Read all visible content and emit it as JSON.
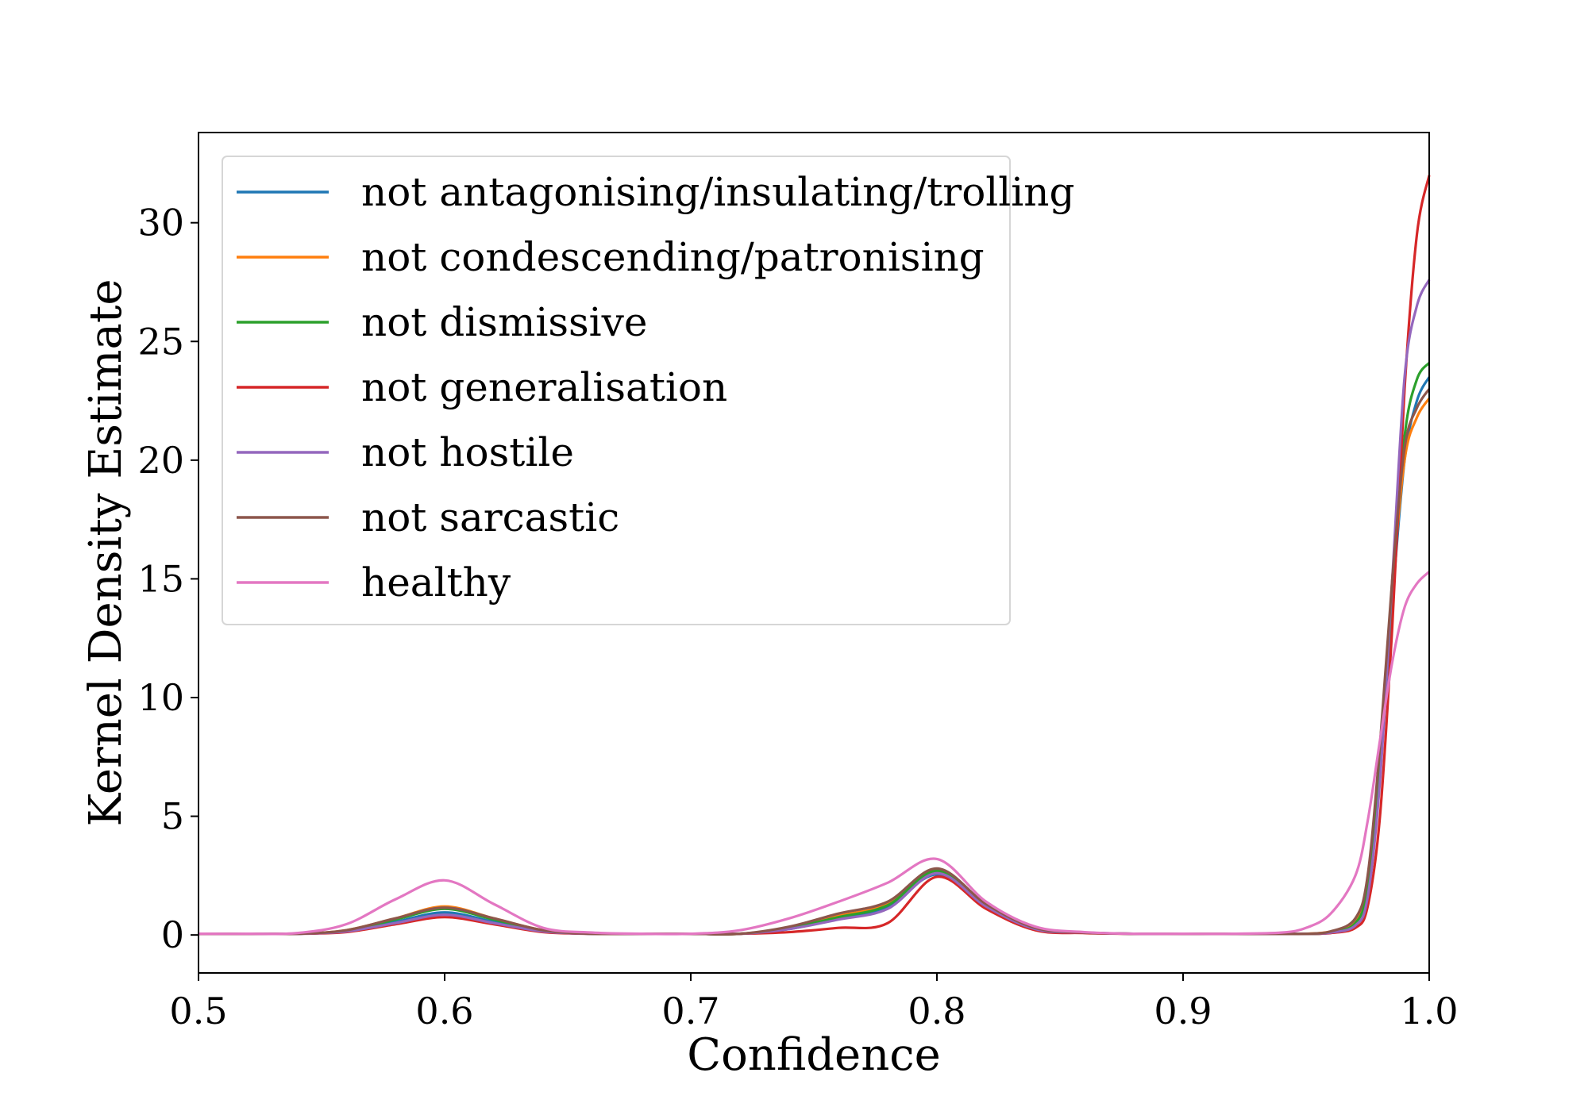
{
  "chart_data": {
    "type": "line",
    "title": "",
    "xlabel": "Confidence",
    "ylabel": "Kernel Density Estimate",
    "xlim": [
      0.5,
      1.0
    ],
    "ylim": [
      -1.6,
      33.8
    ],
    "xticks": [
      0.5,
      0.6,
      0.7,
      0.8,
      0.9,
      1.0
    ],
    "xtick_labels": [
      "0.5",
      "0.6",
      "0.7",
      "0.8",
      "0.9",
      "1.0"
    ],
    "yticks": [
      0,
      5,
      10,
      15,
      20,
      25,
      30
    ],
    "ytick_labels": [
      "0",
      "5",
      "10",
      "15",
      "20",
      "25",
      "30"
    ],
    "grid": false,
    "legend_position": "top-left",
    "x": [
      0.5,
      0.52,
      0.54,
      0.56,
      0.58,
      0.6,
      0.62,
      0.64,
      0.66,
      0.68,
      0.7,
      0.72,
      0.74,
      0.76,
      0.78,
      0.8,
      0.82,
      0.84,
      0.86,
      0.88,
      0.9,
      0.92,
      0.94,
      0.95,
      0.96,
      0.97,
      0.975,
      0.98,
      0.985,
      0.99,
      0.995,
      1.0
    ],
    "series": [
      {
        "name": "not antagonising/insulating/trolling",
        "color": "#1f77b4",
        "values": [
          0.05,
          0.05,
          0.05,
          0.15,
          0.55,
          0.95,
          0.55,
          0.15,
          0.05,
          0.05,
          0.05,
          0.05,
          0.25,
          0.7,
          1.2,
          2.55,
          1.2,
          0.25,
          0.1,
          0.05,
          0.05,
          0.05,
          0.05,
          0.05,
          0.1,
          0.5,
          2.0,
          7.0,
          14.0,
          20.0,
          22.5,
          23.5
        ]
      },
      {
        "name": "not condescending/patronising",
        "color": "#ff7f0e",
        "values": [
          0.05,
          0.05,
          0.05,
          0.2,
          0.7,
          1.2,
          0.7,
          0.2,
          0.05,
          0.05,
          0.05,
          0.05,
          0.3,
          0.8,
          1.3,
          2.7,
          1.3,
          0.3,
          0.1,
          0.05,
          0.05,
          0.05,
          0.05,
          0.05,
          0.15,
          0.6,
          2.3,
          7.5,
          14.5,
          20.0,
          21.8,
          22.6
        ]
      },
      {
        "name": "not dismissive",
        "color": "#2ca02c",
        "values": [
          0.05,
          0.05,
          0.05,
          0.18,
          0.65,
          1.1,
          0.65,
          0.18,
          0.05,
          0.05,
          0.05,
          0.05,
          0.3,
          0.75,
          1.25,
          2.7,
          1.25,
          0.28,
          0.1,
          0.05,
          0.05,
          0.05,
          0.05,
          0.05,
          0.1,
          0.5,
          2.0,
          7.0,
          14.5,
          21.0,
          23.4,
          24.1
        ]
      },
      {
        "name": "not generalisation",
        "color": "#d62728",
        "values": [
          0.05,
          0.05,
          0.05,
          0.12,
          0.45,
          0.75,
          0.45,
          0.12,
          0.05,
          0.05,
          0.05,
          0.05,
          0.12,
          0.3,
          0.5,
          2.45,
          1.1,
          0.2,
          0.08,
          0.05,
          0.05,
          0.05,
          0.05,
          0.05,
          0.08,
          0.3,
          1.2,
          5.0,
          13.0,
          23.0,
          29.5,
          32.0
        ]
      },
      {
        "name": "not hostile",
        "color": "#9467bd",
        "values": [
          0.05,
          0.05,
          0.05,
          0.15,
          0.5,
          0.85,
          0.5,
          0.15,
          0.05,
          0.05,
          0.05,
          0.05,
          0.25,
          0.65,
          1.1,
          2.6,
          1.2,
          0.25,
          0.1,
          0.05,
          0.05,
          0.05,
          0.05,
          0.05,
          0.1,
          0.4,
          1.6,
          6.5,
          15.0,
          23.5,
          26.5,
          27.6
        ]
      },
      {
        "name": "not sarcastic",
        "color": "#8c564b",
        "values": [
          0.05,
          0.05,
          0.05,
          0.2,
          0.7,
          1.15,
          0.7,
          0.2,
          0.05,
          0.05,
          0.05,
          0.05,
          0.35,
          0.9,
          1.4,
          2.8,
          1.3,
          0.3,
          0.1,
          0.05,
          0.05,
          0.05,
          0.05,
          0.05,
          0.15,
          0.7,
          2.5,
          8.0,
          15.0,
          20.5,
          22.2,
          23.0
        ]
      },
      {
        "name": "healthy",
        "color": "#e377c2",
        "values": [
          0.05,
          0.05,
          0.08,
          0.45,
          1.5,
          2.3,
          1.3,
          0.3,
          0.1,
          0.05,
          0.05,
          0.2,
          0.7,
          1.4,
          2.2,
          3.2,
          1.4,
          0.35,
          0.12,
          0.05,
          0.05,
          0.05,
          0.1,
          0.3,
          0.9,
          2.5,
          4.8,
          8.2,
          11.5,
          13.8,
          14.8,
          15.3
        ]
      }
    ]
  }
}
